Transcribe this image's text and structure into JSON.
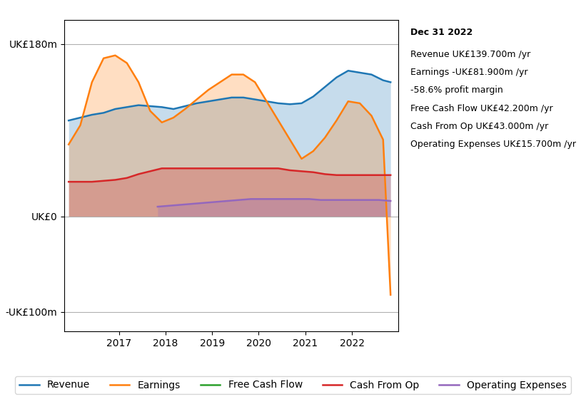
{
  "chart_data": {
    "type": "area",
    "series": [
      {
        "name": "Revenue",
        "x": [
          2015.92,
          2016.17,
          2016.42,
          2016.67,
          2016.92,
          2017.17,
          2017.42,
          2017.67,
          2017.92,
          2018.17,
          2018.42,
          2018.67,
          2018.92,
          2019.17,
          2019.42,
          2019.67,
          2019.92,
          2020.17,
          2020.42,
          2020.67,
          2020.92,
          2021.17,
          2021.42,
          2021.67,
          2021.92,
          2022.17,
          2022.42,
          2022.67,
          2022.83
        ],
        "values": [
          100,
          103,
          106,
          108,
          112,
          114,
          116,
          115,
          114,
          112,
          115,
          118,
          120,
          122,
          124,
          124,
          122,
          120,
          118,
          117,
          118,
          125,
          135,
          145,
          152,
          150,
          148,
          142,
          140
        ]
      },
      {
        "name": "Earnings",
        "x": [
          2015.92,
          2016.17,
          2016.42,
          2016.67,
          2016.92,
          2017.17,
          2017.42,
          2017.67,
          2017.92,
          2018.17,
          2018.42,
          2018.67,
          2018.92,
          2019.17,
          2019.42,
          2019.67,
          2019.92,
          2020.17,
          2020.42,
          2020.67,
          2020.92,
          2021.17,
          2021.42,
          2021.67,
          2021.92,
          2022.17,
          2022.42,
          2022.67,
          2022.83
        ],
        "values": [
          75,
          95,
          140,
          165,
          168,
          160,
          140,
          110,
          98,
          103,
          112,
          122,
          132,
          140,
          148,
          148,
          140,
          120,
          100,
          80,
          60,
          68,
          82,
          100,
          120,
          118,
          105,
          80,
          -82
        ]
      },
      {
        "name": "Free Cash Flow",
        "x": [],
        "values": []
      },
      {
        "name": "Cash From Op",
        "x": [
          2015.92,
          2016.17,
          2016.42,
          2016.67,
          2016.92,
          2017.17,
          2017.42,
          2017.67,
          2017.92,
          2018.17,
          2018.42,
          2018.67,
          2018.92,
          2019.17,
          2019.42,
          2019.67,
          2019.92,
          2020.17,
          2020.42,
          2020.67,
          2020.92,
          2021.17,
          2021.42,
          2021.67,
          2021.92,
          2022.17,
          2022.42,
          2022.67,
          2022.83
        ],
        "values": [
          36,
          36,
          36,
          37,
          38,
          40,
          44,
          47,
          50,
          50,
          50,
          50,
          50,
          50,
          50,
          50,
          50,
          50,
          50,
          48,
          47,
          46,
          44,
          43,
          43,
          43,
          43,
          43,
          43
        ]
      },
      {
        "name": "Operating Expenses",
        "x": [
          2017.83,
          2018.08,
          2018.33,
          2018.58,
          2018.83,
          2019.08,
          2019.33,
          2019.58,
          2019.83,
          2020.08,
          2020.33,
          2020.58,
          2020.83,
          2021.08,
          2021.33,
          2021.58,
          2021.83,
          2022.08,
          2022.33,
          2022.58,
          2022.83
        ],
        "values": [
          10,
          11,
          12,
          13,
          14,
          15,
          16,
          17,
          18,
          18,
          18,
          18,
          18,
          18,
          17,
          17,
          17,
          17,
          17,
          17,
          16
        ]
      }
    ],
    "xlim": [
      2015.83,
      2023.0
    ],
    "xticks": [
      2017,
      2018,
      2019,
      2020,
      2021,
      2022
    ],
    "ylim": [
      -120,
      205
    ],
    "yticks": [
      {
        "value": 180,
        "label": "UK£180m"
      },
      {
        "value": 0,
        "label": "UK£0"
      },
      {
        "value": -100,
        "label": "-UK£100m"
      }
    ],
    "grid": true,
    "legend": "lower center",
    "annotations": [
      "Dec 31 2022",
      "Revenue UK£139.700m /yr",
      "Earnings -UK£81.900m /yr",
      "-58.6% profit margin",
      "Free Cash Flow UK£42.200m /yr",
      "Cash From Op UK£43.000m /yr",
      "Operating Expenses UK£15.700m /yr"
    ]
  }
}
